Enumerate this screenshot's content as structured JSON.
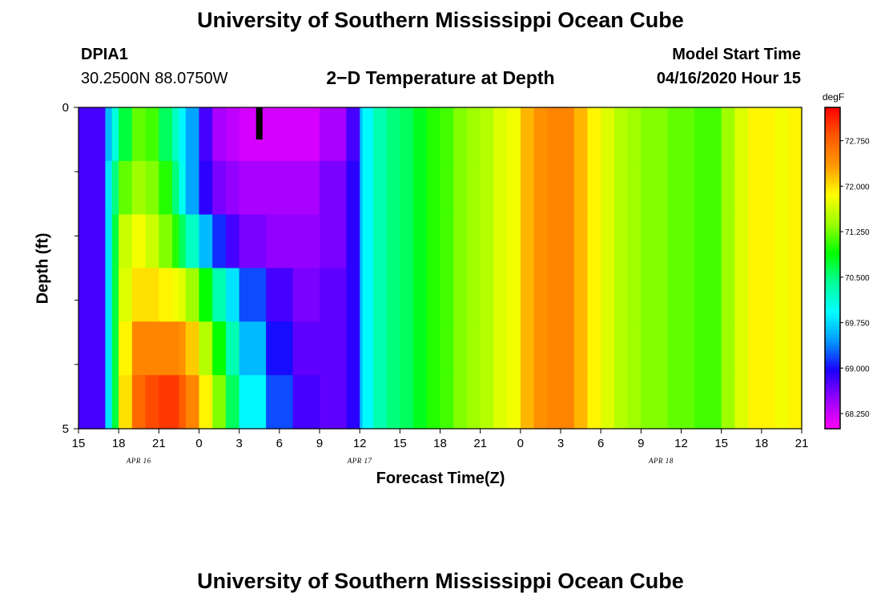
{
  "header": {
    "title": "University of Southern Mississippi Ocean Cube",
    "footer_title": "University of Southern Mississippi Ocean Cube",
    "station_id": "DPIA1",
    "station_coords": "30.2500N 88.0750W",
    "plot_title": "2−D Temperature at Depth",
    "model_start_label": "Model Start Time",
    "model_start_value": "04/16/2020 Hour 15"
  },
  "colors": {
    "colormap": [
      "#ff00ff",
      "#9900ff",
      "#1a00ff",
      "#0099ff",
      "#00ffff",
      "#00ff99",
      "#00ff00",
      "#99ff00",
      "#ffff00",
      "#ff9900",
      "#ff5a00",
      "#ff0000"
    ]
  },
  "chart_data": {
    "type": "heatmap",
    "xlabel": "Forecast Time(Z)",
    "ylabel": "Depth (ft)",
    "x_ticks": [
      "15",
      "18",
      "21",
      "0",
      "3",
      "6",
      "9",
      "12",
      "15",
      "18",
      "21",
      "0",
      "3",
      "6",
      "9",
      "12",
      "15",
      "18",
      "21"
    ],
    "x_tick_hours": [
      0,
      3,
      6,
      9,
      12,
      15,
      18,
      21,
      24,
      27,
      30,
      33,
      36,
      39,
      42,
      45,
      48,
      51,
      54
    ],
    "date_labels": [
      {
        "label": "APR 16",
        "hour": 4.5
      },
      {
        "label": "APR 17",
        "hour": 21
      },
      {
        "label": "APR 18",
        "hour": 43.5
      }
    ],
    "x_range_hours": [
      0,
      54
    ],
    "y_ticks": [
      "0",
      "5"
    ],
    "y_tick_values": [
      0,
      5
    ],
    "y_minor_ticks": [
      1,
      2,
      3,
      4
    ],
    "y_range_ft": [
      0,
      5
    ],
    "legend": {
      "unit": "degF",
      "min": 68.0,
      "max": 73.3,
      "tick_values": [
        68.25,
        69.0,
        69.75,
        70.5,
        71.25,
        72.0,
        72.75
      ],
      "tick_labels": [
        "68.250",
        "69.000",
        "69.750",
        "70.500",
        "71.250",
        "72.000",
        "72.750"
      ]
    },
    "depth_levels_ft": [
      0,
      1,
      2,
      3,
      4,
      5
    ],
    "series": [
      {
        "name": "depth 0-1 ft",
        "hours": [
          0,
          1,
          2,
          2.5,
          3,
          4,
          5,
          6,
          7,
          7.5,
          8,
          9,
          10,
          11,
          12,
          14,
          16,
          18,
          20,
          21,
          21.2,
          22,
          23,
          24,
          25,
          26,
          27,
          28,
          29,
          30,
          31,
          32,
          33,
          34,
          35,
          36,
          37,
          38,
          39,
          40,
          41,
          42,
          43,
          44,
          45,
          46,
          47,
          48,
          49,
          50,
          51,
          52,
          53,
          54
        ],
        "values": [
          68.8,
          68.8,
          69.6,
          70.1,
          70.7,
          71.2,
          71.1,
          70.6,
          70.2,
          69.9,
          69.5,
          68.8,
          68.4,
          68.3,
          68.2,
          68.2,
          68.2,
          68.4,
          68.8,
          69.6,
          69.9,
          70.3,
          70.5,
          70.6,
          70.8,
          71.0,
          71.1,
          71.3,
          71.4,
          71.5,
          71.7,
          71.8,
          72.2,
          72.4,
          72.5,
          72.5,
          72.2,
          71.9,
          71.7,
          71.5,
          71.4,
          71.3,
          71.3,
          71.2,
          71.2,
          71.1,
          71.1,
          71.4,
          71.7,
          71.9,
          71.9,
          71.8,
          71.9,
          72.0
        ]
      },
      {
        "name": "depth 1-2 ft",
        "hours": [
          0,
          1,
          2,
          2.5,
          3,
          4,
          5,
          6,
          7,
          7.5,
          8,
          9,
          10,
          11,
          12,
          14,
          16,
          18,
          20,
          21,
          21.2,
          22,
          23,
          24,
          25,
          26,
          27,
          28,
          29,
          30,
          31,
          32,
          33,
          34,
          35,
          36,
          37,
          38,
          39,
          40,
          41,
          42,
          43,
          44,
          45,
          46,
          47,
          48,
          49,
          50,
          51,
          52,
          53,
          54
        ],
        "values": [
          68.8,
          68.8,
          69.8,
          70.5,
          71.2,
          71.4,
          71.3,
          71.0,
          70.5,
          70.0,
          69.5,
          68.9,
          68.6,
          68.5,
          68.4,
          68.4,
          68.4,
          68.6,
          68.9,
          69.6,
          69.9,
          70.3,
          70.5,
          70.6,
          70.8,
          71.0,
          71.1,
          71.3,
          71.4,
          71.5,
          71.7,
          71.8,
          72.2,
          72.4,
          72.5,
          72.5,
          72.2,
          71.9,
          71.7,
          71.5,
          71.4,
          71.3,
          71.3,
          71.2,
          71.2,
          71.1,
          71.1,
          71.4,
          71.7,
          71.9,
          71.9,
          71.8,
          71.9,
          72.0
        ]
      },
      {
        "name": "depth 2-3 ft",
        "hours": [
          0,
          1,
          2,
          2.5,
          3,
          4,
          5,
          6,
          7,
          7.5,
          8,
          9,
          10,
          11,
          12,
          14,
          16,
          18,
          20,
          21,
          21.2,
          22,
          23,
          24,
          25,
          26,
          27,
          28,
          29,
          30,
          31,
          32,
          33,
          34,
          35,
          36,
          37,
          38,
          39,
          40,
          41,
          42,
          43,
          44,
          45,
          46,
          47,
          48,
          49,
          50,
          51,
          52,
          53,
          54
        ],
        "values": [
          68.8,
          68.8,
          69.8,
          70.7,
          71.6,
          71.8,
          71.6,
          71.3,
          71.0,
          70.6,
          70.2,
          69.6,
          69.1,
          68.8,
          68.6,
          68.5,
          68.5,
          68.6,
          68.9,
          69.6,
          69.9,
          70.3,
          70.5,
          70.6,
          70.8,
          71.0,
          71.1,
          71.3,
          71.4,
          71.5,
          71.7,
          71.8,
          72.2,
          72.4,
          72.5,
          72.5,
          72.2,
          71.9,
          71.7,
          71.5,
          71.4,
          71.3,
          71.3,
          71.2,
          71.2,
          71.1,
          71.1,
          71.4,
          71.7,
          71.9,
          71.9,
          71.8,
          71.9,
          72.0
        ]
      },
      {
        "name": "depth 3-4 ft",
        "hours": [
          0,
          1,
          2,
          2.5,
          3,
          4,
          5,
          6,
          7,
          7.5,
          8,
          9,
          10,
          11,
          12,
          14,
          16,
          18,
          20,
          21,
          21.2,
          22,
          23,
          24,
          25,
          26,
          27,
          28,
          29,
          30,
          31,
          32,
          33,
          34,
          35,
          36,
          37,
          38,
          39,
          40,
          41,
          42,
          43,
          44,
          45,
          46,
          47,
          48,
          49,
          50,
          51,
          52,
          53,
          54
        ],
        "values": [
          68.8,
          68.8,
          69.8,
          70.7,
          71.7,
          72.0,
          72.0,
          71.9,
          71.8,
          71.7,
          71.4,
          70.9,
          70.3,
          69.8,
          69.2,
          68.8,
          68.6,
          68.7,
          68.9,
          69.6,
          69.9,
          70.3,
          70.5,
          70.6,
          70.8,
          71.0,
          71.1,
          71.3,
          71.4,
          71.5,
          71.7,
          71.8,
          72.2,
          72.4,
          72.5,
          72.5,
          72.2,
          71.9,
          71.7,
          71.5,
          71.4,
          71.3,
          71.3,
          71.2,
          71.2,
          71.1,
          71.1,
          71.4,
          71.7,
          71.9,
          71.9,
          71.8,
          71.9,
          72.0
        ]
      },
      {
        "name": "depth 4-5 ft",
        "hours": [
          0,
          1,
          2,
          2.5,
          3,
          4,
          5,
          6,
          7,
          7.5,
          8,
          9,
          10,
          11,
          12,
          14,
          16,
          18,
          20,
          21,
          21.2,
          22,
          23,
          24,
          25,
          26,
          27,
          28,
          29,
          30,
          31,
          32,
          33,
          34,
          35,
          36,
          37,
          38,
          39,
          40,
          41,
          42,
          43,
          44,
          45,
          46,
          47,
          48,
          49,
          50,
          51,
          52,
          53,
          54
        ],
        "values": [
          68.8,
          68.8,
          69.8,
          70.7,
          71.9,
          72.5,
          72.5,
          72.5,
          72.5,
          72.4,
          72.1,
          71.5,
          70.9,
          70.3,
          69.6,
          69.0,
          68.7,
          68.7,
          68.9,
          69.6,
          69.9,
          70.3,
          70.5,
          70.6,
          70.8,
          71.0,
          71.1,
          71.3,
          71.4,
          71.5,
          71.7,
          71.8,
          72.2,
          72.4,
          72.5,
          72.5,
          72.2,
          71.9,
          71.7,
          71.5,
          71.4,
          71.3,
          71.3,
          71.2,
          71.2,
          71.1,
          71.1,
          71.4,
          71.7,
          71.9,
          71.9,
          71.8,
          71.9,
          72.0
        ]
      },
      {
        "name": "depth 5 ft",
        "hours": [
          0,
          1,
          2,
          2.5,
          3,
          4,
          5,
          6,
          7,
          7.5,
          8,
          9,
          10,
          11,
          12,
          14,
          16,
          18,
          20,
          21,
          21.2,
          22,
          23,
          24,
          25,
          26,
          27,
          28,
          29,
          30,
          31,
          32,
          33,
          34,
          35,
          36,
          37,
          38,
          39,
          40,
          41,
          42,
          43,
          44,
          45,
          46,
          47,
          48,
          49,
          50,
          51,
          52,
          53,
          54
        ],
        "values": [
          68.8,
          68.8,
          69.8,
          70.7,
          72.0,
          72.7,
          72.9,
          73.0,
          73.0,
          72.8,
          72.5,
          71.9,
          71.3,
          70.6,
          69.9,
          69.2,
          68.8,
          68.7,
          68.9,
          69.6,
          69.9,
          70.3,
          70.5,
          70.6,
          70.8,
          71.0,
          71.1,
          71.3,
          71.4,
          71.5,
          71.7,
          71.8,
          72.2,
          72.4,
          72.5,
          72.5,
          72.2,
          71.9,
          71.7,
          71.5,
          71.4,
          71.3,
          71.3,
          71.2,
          71.2,
          71.1,
          71.1,
          71.4,
          71.7,
          71.9,
          71.9,
          71.8,
          71.9,
          72.0
        ]
      }
    ],
    "annotations": [
      {
        "type": "marker-bar",
        "hour": 13.5,
        "depth_from_ft": 0,
        "depth_to_ft": 0.5,
        "color": "#000000"
      }
    ]
  }
}
